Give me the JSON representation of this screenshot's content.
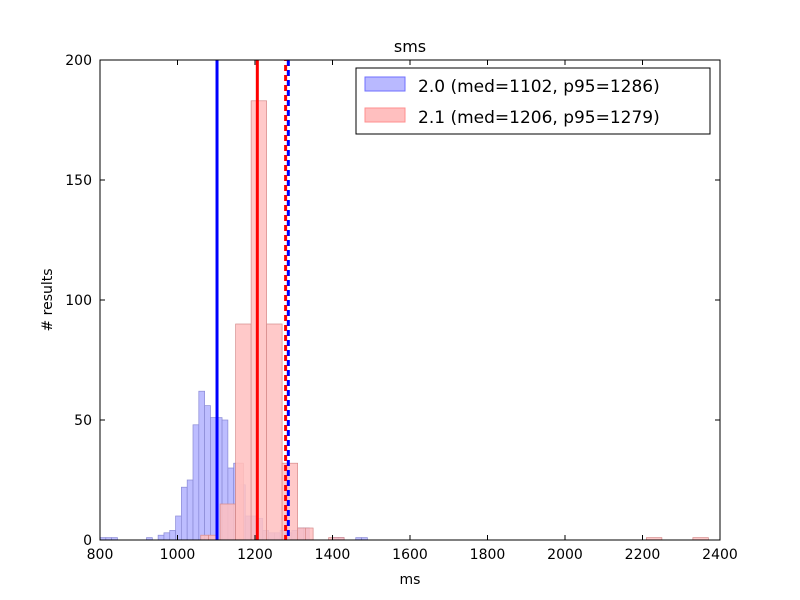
{
  "chart_data": {
    "type": "bar",
    "title": "sms",
    "xlabel": "ms",
    "ylabel": "# results",
    "xlim": [
      800,
      2400
    ],
    "ylim": [
      0,
      200
    ],
    "xticks": [
      800,
      1000,
      1200,
      1400,
      1600,
      1800,
      2000,
      2200,
      2400
    ],
    "yticks": [
      0,
      50,
      100,
      150,
      200
    ],
    "grid": false,
    "legend_position": "top-right",
    "series": [
      {
        "name": "2.0 (med=1102, p95=1286)",
        "color": "#0000ff",
        "fill_color": "#b9b9ff",
        "median": 1102,
        "p95": 1286,
        "bins": [
          [
            800,
            815,
            1
          ],
          [
            815,
            830,
            1
          ],
          [
            830,
            845,
            1
          ],
          [
            920,
            935,
            1
          ],
          [
            935,
            950,
            0
          ],
          [
            950,
            965,
            2
          ],
          [
            965,
            980,
            3
          ],
          [
            980,
            995,
            4
          ],
          [
            995,
            1010,
            10
          ],
          [
            1010,
            1025,
            22
          ],
          [
            1025,
            1040,
            25
          ],
          [
            1040,
            1055,
            48
          ],
          [
            1055,
            1070,
            62
          ],
          [
            1070,
            1085,
            56
          ],
          [
            1085,
            1100,
            51
          ],
          [
            1100,
            1115,
            51
          ],
          [
            1115,
            1130,
            50
          ],
          [
            1130,
            1145,
            30
          ],
          [
            1145,
            1160,
            32
          ],
          [
            1160,
            1175,
            23
          ],
          [
            1175,
            1190,
            10
          ],
          [
            1190,
            1205,
            10
          ],
          [
            1205,
            1220,
            9
          ],
          [
            1220,
            1235,
            4
          ],
          [
            1235,
            1250,
            3
          ],
          [
            1250,
            1265,
            3
          ],
          [
            1265,
            1280,
            4
          ],
          [
            1280,
            1295,
            3
          ],
          [
            1295,
            1310,
            4
          ],
          [
            1310,
            1325,
            5
          ],
          [
            1325,
            1340,
            5
          ],
          [
            1400,
            1415,
            1
          ],
          [
            1415,
            1430,
            1
          ],
          [
            1460,
            1475,
            1
          ],
          [
            1475,
            1490,
            1
          ]
        ]
      },
      {
        "name": "2.1 (med=1206, p95=1279)",
        "color": "#ff0000",
        "fill_color": "#ffbfbf",
        "median": 1206,
        "p95": 1279,
        "bins": [
          [
            1060,
            1080,
            2
          ],
          [
            1080,
            1100,
            2
          ],
          [
            1110,
            1150,
            15
          ],
          [
            1150,
            1170,
            32
          ],
          [
            1150,
            1190,
            90
          ],
          [
            1190,
            1230,
            183
          ],
          [
            1230,
            1270,
            90
          ],
          [
            1270,
            1310,
            32
          ],
          [
            1310,
            1330,
            5
          ],
          [
            1330,
            1350,
            5
          ],
          [
            1390,
            1430,
            1
          ],
          [
            2210,
            2250,
            1
          ],
          [
            2330,
            2370,
            1
          ]
        ]
      }
    ]
  }
}
